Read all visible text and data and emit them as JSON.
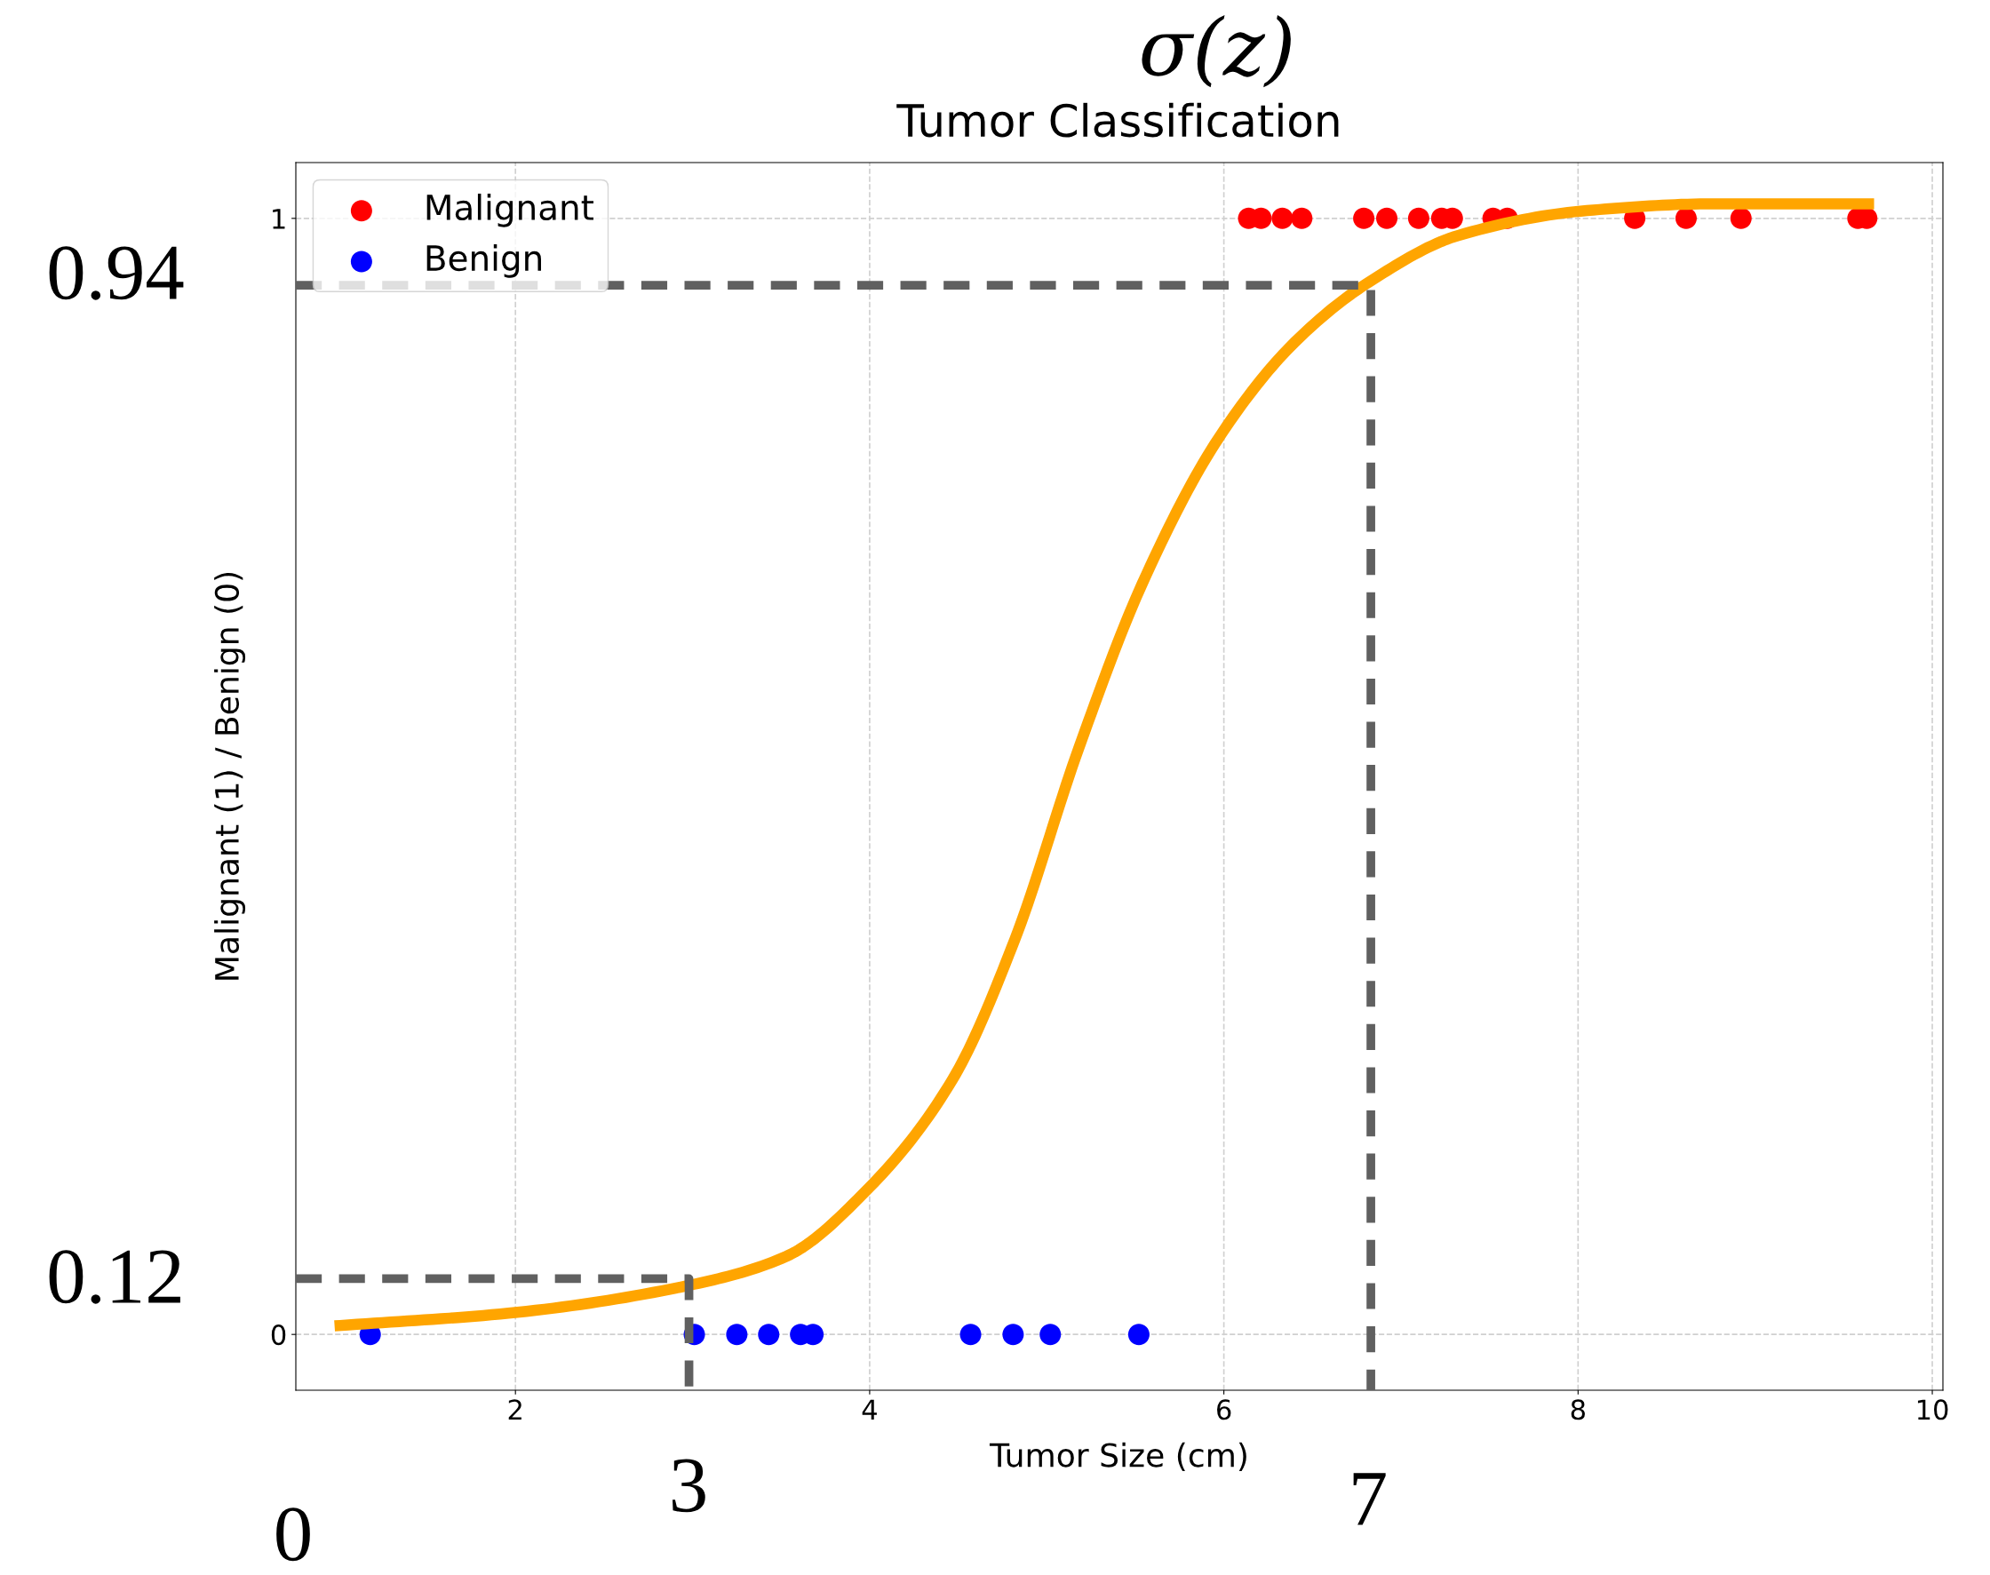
{
  "chart_data": {
    "type": "scatter",
    "title": "σ(z)",
    "subtitle": "Tumor Classification",
    "xlabel": "Tumor Size (cm)",
    "ylabel": "Malignant (1) / Benign (0)",
    "xlim": [
      0.76,
      10.06
    ],
    "xticks": [
      2,
      4,
      6,
      8,
      10
    ],
    "ylim": [
      -0.05,
      1.05
    ],
    "yticks": [
      0,
      1
    ],
    "grid": true,
    "legend": "top left",
    "series": [
      {
        "name": "Malignant",
        "marker": "circle",
        "color": "#ff0000",
        "x": [
          6.14,
          6.21,
          6.33,
          6.44,
          6.79,
          6.92,
          7.1,
          7.23,
          7.29,
          7.52,
          7.6,
          8.32,
          8.61,
          8.92,
          9.58,
          9.63
        ],
        "values": [
          1,
          1,
          1,
          1,
          1,
          1,
          1,
          1,
          1,
          1,
          1,
          1,
          1,
          1,
          1,
          1
        ]
      },
      {
        "name": "Benign",
        "marker": "circle",
        "color": "#0000ff",
        "x": [
          1.18,
          3.01,
          3.25,
          3.43,
          3.61,
          3.68,
          4.57,
          4.81,
          5.02,
          5.52
        ],
        "values": [
          0,
          0,
          0,
          0,
          0,
          0,
          0,
          0,
          0,
          0
        ]
      },
      {
        "type": "line",
        "color": "#ffa500",
        "marker": "none",
        "line_style": "solid",
        "x": [
          1.01,
          1.96,
          2.98,
          3.53,
          4.0,
          4.47,
          4.82,
          5.18,
          5.54,
          5.97,
          6.4,
          6.82,
          7.33,
          8.05,
          8.76,
          9.64
        ],
        "values": [
          0.008,
          0.019,
          0.044,
          0.07,
          0.132,
          0.229,
          0.354,
          0.525,
          0.673,
          0.803,
          0.889,
          0.943,
          0.985,
          1.007,
          1.013,
          1.013
        ]
      },
      {
        "type": "line",
        "color": "#606060",
        "line_style": "dashed",
        "marker": "none",
        "x": [
          0.76,
          6.83,
          6.83
        ],
        "values": [
          0.94,
          0.94,
          -0.05
        ]
      },
      {
        "type": "line",
        "color": "#606060",
        "line_style": "dashed",
        "marker": "none",
        "x": [
          0.76,
          2.98,
          2.98
        ],
        "values": [
          0.05,
          0.05,
          -0.05
        ]
      }
    ],
    "annotations": [
      "0.94",
      "0.12",
      "3",
      "7",
      "0"
    ]
  }
}
